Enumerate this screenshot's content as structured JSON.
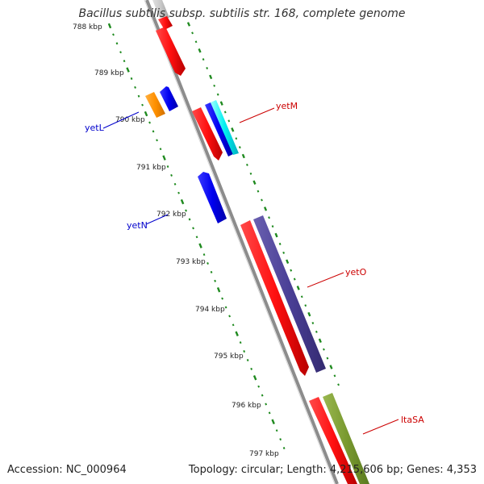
{
  "title": "Bacillus subtilis subsp. subtilis str. 168, complete genome",
  "footer": {
    "accession": "Accession: NC_000964",
    "topology": "Topology: circular; Length: 4,215,606 bp; Genes: 4,353"
  },
  "colors": {
    "backbone": "#8c8c8c",
    "tick": "#1f8a1f",
    "forward_label": "#cc0000",
    "reverse_label": "#0000cc"
  },
  "kbp_labels": [
    "788 kbp",
    "789 kbp",
    "790 kbp",
    "791 kbp",
    "792 kbp",
    "793 kbp",
    "794 kbp",
    "795 kbp",
    "796 kbp",
    "797 kbp"
  ],
  "genes": [
    {
      "name": "yetL",
      "strand": "reverse",
      "color": "#0000cc"
    },
    {
      "name": "yetM",
      "strand": "forward",
      "color": "#cc0000"
    },
    {
      "name": "yetN",
      "strand": "reverse",
      "color": "#0000cc"
    },
    {
      "name": "yetO",
      "strand": "forward",
      "color": "#cc0000"
    },
    {
      "name": "ltaSA",
      "strand": "forward",
      "color": "#cc0000"
    }
  ]
}
